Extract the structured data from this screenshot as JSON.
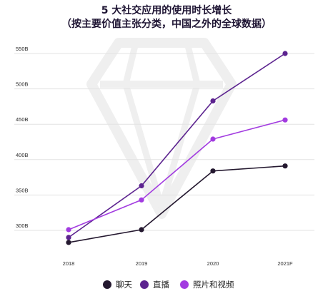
{
  "colors": {
    "chat": "#24182f",
    "live": "#5c238f",
    "photo_video": "#a23be0",
    "gridline": "#e3e3e3",
    "watermark": "#efefef"
  },
  "chart_data": {
    "type": "line",
    "title_lines": [
      "5 大社交应用的使用时长增长",
      "（按主要价值主张分类，中国之外的全球数据）"
    ],
    "xlabel": "",
    "ylabel": "",
    "categories": [
      "2018",
      "2019",
      "2020",
      "2021F"
    ],
    "y_ticks": [
      300,
      350,
      400,
      450,
      500,
      550
    ],
    "y_tick_labels": [
      "300B",
      "350B",
      "400B",
      "450B",
      "500B",
      "550B"
    ],
    "ylim": [
      265,
      560
    ],
    "grid": true,
    "legend_position": "bottom",
    "series": [
      {
        "name": "聊天",
        "color_key": "chat",
        "values": [
          283,
          301,
          384,
          391
        ]
      },
      {
        "name": "直播",
        "color_key": "live",
        "values": [
          290,
          363,
          483,
          550
        ]
      },
      {
        "name": "照片和视频",
        "color_key": "photo_video",
        "values": [
          301,
          343,
          429,
          456
        ]
      }
    ]
  }
}
